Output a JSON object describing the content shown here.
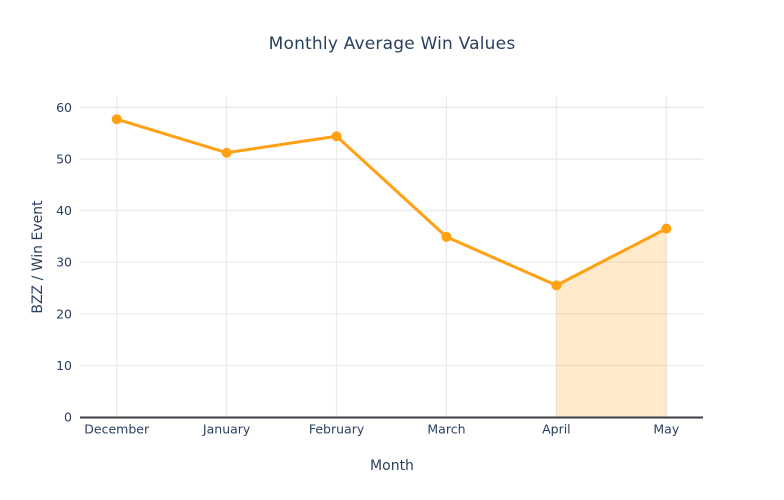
{
  "title": "Monthly Average Win Values",
  "chart_data": {
    "type": "line",
    "title": "Monthly Average Win Values",
    "xlabel": "Month",
    "ylabel": "BZZ / Win Event",
    "categories": [
      "December",
      "January",
      "February",
      "March",
      "April",
      "May"
    ],
    "series": [
      {
        "name": "BZZ / Win Event",
        "values": [
          57.7,
          51.2,
          54.4,
          34.9,
          25.5,
          36.5
        ]
      }
    ],
    "ylim": [
      0,
      62
    ],
    "yticks": [
      0,
      10,
      20,
      30,
      40,
      50,
      60
    ],
    "grid": true,
    "legend": false,
    "fill_region": {
      "from": "April",
      "to": "May"
    },
    "colors": {
      "line": "#FFA113",
      "marker": "#FFA113",
      "fill": "rgba(255,161,19,0.22)",
      "grid": "#EBEBEB",
      "axis_line": "#3B3F45",
      "text": "#2A3F5F",
      "background": "#FFFFFF"
    }
  }
}
